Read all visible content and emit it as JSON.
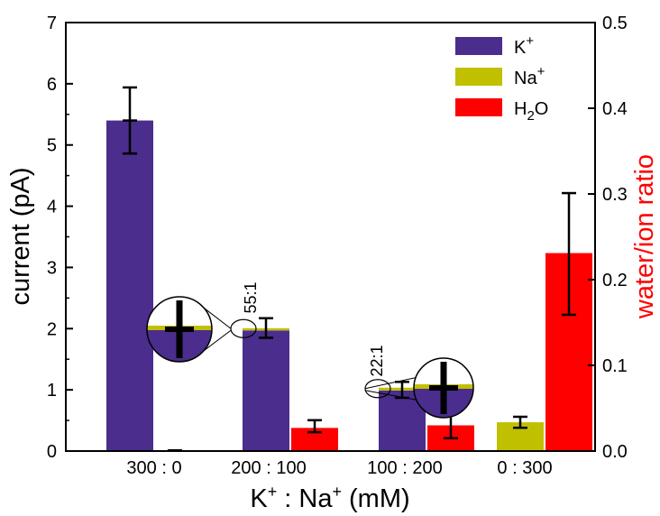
{
  "chart_data": {
    "type": "bar",
    "categories": [
      "300 : 0",
      "200 : 100",
      "100 : 200",
      "0 : 300"
    ],
    "xlabel_parts": [
      "K",
      "+",
      " : Na",
      "+",
      " (mM)"
    ],
    "ylabel": "current (pA)",
    "ylabel_right": "water/ion ratio",
    "ylim": [
      0,
      7
    ],
    "ylim_right": [
      0,
      0.5
    ],
    "yticks": [
      "0",
      "1",
      "2",
      "3",
      "4",
      "5",
      "6",
      "7"
    ],
    "yticks_right": [
      "0.0",
      "0.1",
      "0.2",
      "0.3",
      "0.4",
      "0.5"
    ],
    "grid": false,
    "legend_position": "top-right",
    "colors": {
      "K": "#4a2d8c",
      "Na": "#c0c000",
      "H2O": "#ff0000"
    },
    "legend": [
      {
        "base": "K",
        "sup": "+",
        "sub": "",
        "tail": "",
        "color": "#4a2d8c"
      },
      {
        "base": "Na",
        "sup": "+",
        "sub": "",
        "tail": "",
        "color": "#c0c000"
      },
      {
        "base": "H",
        "sup": "",
        "sub": "2",
        "tail": "O",
        "color": "#ff0000"
      }
    ],
    "series": [
      {
        "name": "K+",
        "axis": "left",
        "values": [
          5.4,
          1.97,
          0.99,
          0.0
        ],
        "err_low": [
          4.86,
          1.85,
          0.87,
          null
        ],
        "err_high": [
          5.94,
          2.17,
          1.13,
          null
        ]
      },
      {
        "name": "Na+",
        "axis": "left",
        "values": [
          0.0,
          0.036,
          0.045,
          0.47
        ],
        "err_low": [
          null,
          null,
          null,
          0.38
        ],
        "err_high": [
          null,
          null,
          null,
          0.56
        ]
      },
      {
        "name": "H2O",
        "axis": "right",
        "values": [
          0.0,
          0.027,
          0.03,
          0.231
        ],
        "err_low": [
          null,
          0.022,
          0.015,
          0.159
        ],
        "err_high": [
          null,
          0.036,
          0.049,
          0.301
        ]
      }
    ],
    "annotations": [
      "55:1",
      "22:1"
    ]
  }
}
